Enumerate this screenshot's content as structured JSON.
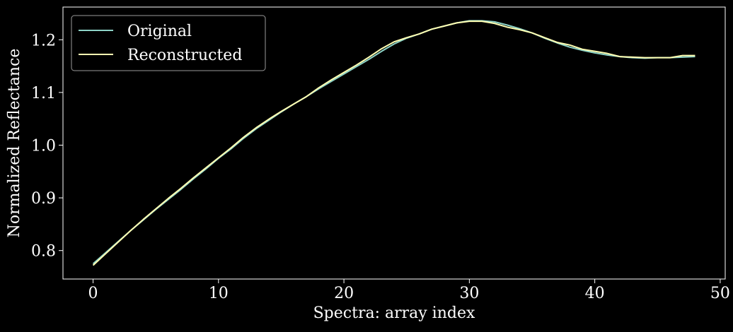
{
  "chart_data": {
    "type": "line",
    "xlabel": "Spectra: array index",
    "ylabel": "Normalized Reflectance",
    "xlim": [
      -2.4,
      50.4
    ],
    "ylim": [
      0.746,
      1.262
    ],
    "xticks": [
      0,
      10,
      20,
      30,
      40,
      50
    ],
    "yticks": [
      0.8,
      0.9,
      1.0,
      1.1,
      1.2
    ],
    "xtick_labels": [
      "0",
      "10",
      "20",
      "30",
      "40",
      "50"
    ],
    "ytick_labels": [
      "0.8",
      "0.9",
      "1.0",
      "1.1",
      "1.2"
    ],
    "grid": false,
    "legend": "upper-left",
    "background": "#000000",
    "x": [
      0,
      1,
      2,
      3,
      4,
      5,
      6,
      7,
      8,
      9,
      10,
      11,
      12,
      13,
      14,
      15,
      16,
      17,
      18,
      19,
      20,
      21,
      22,
      23,
      24,
      25,
      26,
      27,
      28,
      29,
      30,
      31,
      32,
      33,
      34,
      35,
      36,
      37,
      38,
      39,
      40,
      41,
      42,
      43,
      44,
      45,
      46,
      47,
      48
    ],
    "series": [
      {
        "name": "Original",
        "color": "#8dd3c7",
        "values": [
          0.775,
          0.796,
          0.817,
          0.838,
          0.858,
          0.878,
          0.897,
          0.916,
          0.936,
          0.955,
          0.975,
          0.993,
          1.013,
          1.031,
          1.047,
          1.063,
          1.078,
          1.092,
          1.107,
          1.121,
          1.135,
          1.149,
          1.163,
          1.178,
          1.192,
          1.203,
          1.211,
          1.22,
          1.226,
          1.232,
          1.236,
          1.236,
          1.234,
          1.228,
          1.221,
          1.213,
          1.203,
          1.194,
          1.186,
          1.18,
          1.175,
          1.171,
          1.168,
          1.166,
          1.165,
          1.166,
          1.166,
          1.167,
          1.168
        ]
      },
      {
        "name": "Reconstructed",
        "color": "#ffffb3",
        "values": [
          0.772,
          0.794,
          0.816,
          0.838,
          0.859,
          0.879,
          0.899,
          0.918,
          0.938,
          0.957,
          0.976,
          0.995,
          1.015,
          1.033,
          1.049,
          1.064,
          1.078,
          1.092,
          1.109,
          1.124,
          1.138,
          1.152,
          1.167,
          1.183,
          1.196,
          1.204,
          1.211,
          1.22,
          1.226,
          1.232,
          1.235,
          1.235,
          1.231,
          1.224,
          1.219,
          1.213,
          1.204,
          1.195,
          1.19,
          1.182,
          1.178,
          1.174,
          1.168,
          1.167,
          1.166,
          1.166,
          1.166,
          1.17,
          1.17
        ]
      }
    ]
  }
}
